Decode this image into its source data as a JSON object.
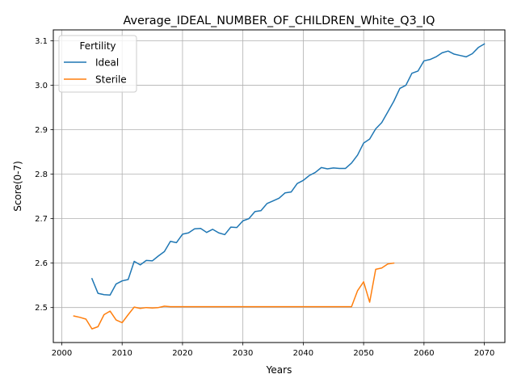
{
  "chart_data": {
    "type": "line",
    "title": "Average_IDEAL_NUMBER_OF_CHILDREN_White_Q3_IQ",
    "xlabel": "Years",
    "ylabel": "Score(0-7)",
    "xlim": [
      1998.6,
      2073.4
    ],
    "ylim": [
      2.4213,
      3.1246
    ],
    "xticks": [
      2000,
      2010,
      2020,
      2030,
      2040,
      2050,
      2060,
      2070
    ],
    "yticks": [
      2.5,
      2.6,
      2.7,
      2.8,
      2.9,
      3.0,
      3.1
    ],
    "ytick_labels": [
      "2.5",
      "2.6",
      "2.7",
      "2.8",
      "2.9",
      "3.0",
      "3.1"
    ],
    "grid": true,
    "legend": {
      "title": "Fertility",
      "position": "top-left"
    },
    "series": [
      {
        "name": "Ideal",
        "color": "#1f77b4",
        "x": [
          2005,
          2006,
          2007,
          2008,
          2009,
          2010,
          2011,
          2012,
          2013,
          2014,
          2015,
          2016,
          2017,
          2018,
          2019,
          2020,
          2021,
          2022,
          2023,
          2024,
          2025,
          2026,
          2027,
          2028,
          2029,
          2030,
          2031,
          2032,
          2033,
          2034,
          2035,
          2036,
          2037,
          2038,
          2039,
          2040,
          2041,
          2042,
          2043,
          2044,
          2045,
          2046,
          2047,
          2048,
          2049,
          2050,
          2051,
          2052,
          2053,
          2054,
          2055,
          2056,
          2057,
          2058,
          2059,
          2060,
          2061,
          2062,
          2063,
          2064,
          2065,
          2066,
          2067,
          2068,
          2069,
          2070
        ],
        "y": [
          2.565,
          2.532,
          2.529,
          2.528,
          2.553,
          2.56,
          2.563,
          2.604,
          2.596,
          2.606,
          2.605,
          2.616,
          2.626,
          2.649,
          2.646,
          2.665,
          2.668,
          2.677,
          2.678,
          2.669,
          2.676,
          2.668,
          2.664,
          2.681,
          2.68,
          2.695,
          2.7,
          2.716,
          2.718,
          2.734,
          2.74,
          2.746,
          2.758,
          2.76,
          2.779,
          2.786,
          2.797,
          2.804,
          2.815,
          2.812,
          2.814,
          2.813,
          2.813,
          2.825,
          2.843,
          2.87,
          2.879,
          2.902,
          2.916,
          2.94,
          2.964,
          2.993,
          3.0,
          3.027,
          3.032,
          3.055,
          3.058,
          3.064,
          3.073,
          3.077,
          3.07,
          3.067,
          3.064,
          3.071,
          3.085,
          3.093
        ]
      },
      {
        "name": "Sterile",
        "color": "#ff7f0e",
        "x": [
          2002,
          2003,
          2004,
          2005,
          2006,
          2007,
          2008,
          2009,
          2010,
          2011,
          2012,
          2013,
          2014,
          2015,
          2016,
          2017,
          2018,
          2019,
          2020,
          2021,
          2022,
          2023,
          2024,
          2025,
          2026,
          2027,
          2028,
          2029,
          2030,
          2031,
          2032,
          2033,
          2034,
          2035,
          2036,
          2037,
          2038,
          2039,
          2040,
          2041,
          2042,
          2043,
          2044,
          2045,
          2046,
          2047,
          2048,
          2049,
          2050,
          2051,
          2052,
          2053,
          2054,
          2055
        ],
        "y": [
          2.481,
          2.478,
          2.474,
          2.452,
          2.457,
          2.484,
          2.492,
          2.472,
          2.466,
          2.484,
          2.501,
          2.498,
          2.5,
          2.499,
          2.5,
          2.503,
          2.502,
          2.502,
          2.502,
          2.502,
          2.502,
          2.502,
          2.502,
          2.502,
          2.502,
          2.502,
          2.502,
          2.502,
          2.502,
          2.502,
          2.502,
          2.502,
          2.502,
          2.502,
          2.502,
          2.502,
          2.502,
          2.502,
          2.502,
          2.502,
          2.502,
          2.502,
          2.502,
          2.502,
          2.502,
          2.502,
          2.502,
          2.538,
          2.558,
          2.512,
          2.586,
          2.589,
          2.598,
          2.6
        ]
      }
    ]
  }
}
